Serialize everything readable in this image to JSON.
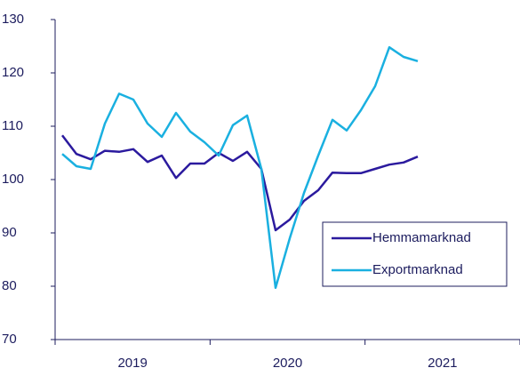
{
  "chart_data": {
    "type": "line",
    "x_labels": [
      "2019",
      "2020",
      "2021"
    ],
    "categories": [
      null,
      null,
      null,
      null,
      null,
      null,
      null,
      null,
      null,
      null,
      null,
      null,
      null,
      null,
      null,
      null,
      null,
      null,
      null,
      null,
      null,
      null,
      null,
      null,
      null,
      null
    ],
    "series": [
      {
        "name": "Hemmamarknad",
        "color": "#2b1a9e",
        "values": [
          108.3,
          104.8,
          103.8,
          105.4,
          105.2,
          105.7,
          103.3,
          104.5,
          100.3,
          103,
          103,
          105,
          103.5,
          105.2,
          102,
          90.5,
          92.5,
          96,
          98,
          101.3,
          101.2,
          101.2,
          102,
          102.8,
          103.2,
          104.3
        ]
      },
      {
        "name": "Exportmarknad",
        "color": "#1ab0e0",
        "values": [
          104.8,
          102.5,
          102,
          110.5,
          116.1,
          115,
          110.5,
          108,
          112.5,
          109,
          107,
          104.5,
          110.2,
          112,
          102,
          79.7,
          89,
          97.5,
          104.5,
          111.2,
          109.2,
          113,
          117.5,
          124.8,
          123,
          122.2
        ]
      }
    ],
    "ylim": [
      70,
      130
    ],
    "yticks": [
      70,
      80,
      90,
      100,
      110,
      120,
      130
    ],
    "legend": "lower right"
  }
}
